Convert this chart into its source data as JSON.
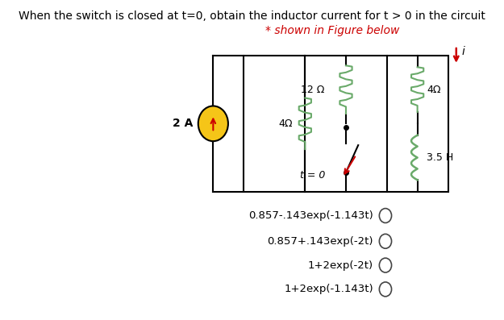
{
  "title_line1": "When the switch is closed at t=0, obtain the inductor current for t > 0 in the circuit",
  "title_line2": "* shown in Figure below",
  "title_fontsize": 10.0,
  "background_color": "#ffffff",
  "choices": [
    "0.857-.143exp(-1.143t)",
    "0.857+.143exp(-2t)",
    "1+2exp(-2t)",
    "1+2exp(-1.143t)"
  ],
  "source_color_face": "#f5c518",
  "source_color_edge": "#000000",
  "resistor_color": "#6aaa6a",
  "inductor_color": "#6aaa6a",
  "wire_color": "#000000",
  "current_arrow_color": "#cc0000",
  "switch_arrow_color": "#cc0000",
  "label_color": "#000000",
  "red_color": "#cc0000"
}
